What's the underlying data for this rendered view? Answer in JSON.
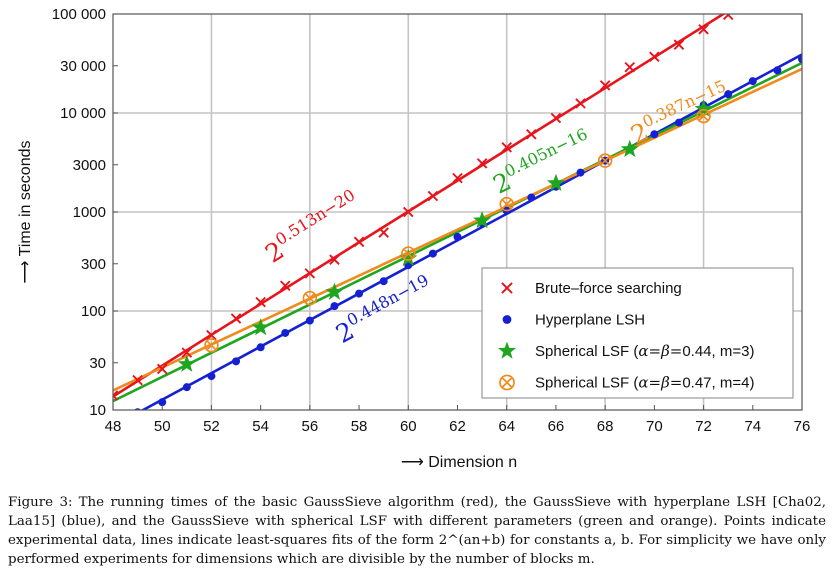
{
  "chart_data": {
    "type": "scatter",
    "y_scale": "log",
    "xlim": [
      48,
      76
    ],
    "ylim": [
      10,
      100000
    ],
    "grid": true,
    "legend_position": "lower-right",
    "xlabel": "⟶ Dimension n",
    "ylabel": "⟶ Time in seconds",
    "x_ticks": [
      "48",
      "50",
      "52",
      "54",
      "56",
      "58",
      "60",
      "62",
      "64",
      "66",
      "68",
      "70",
      "72",
      "74",
      "76"
    ],
    "y_ticks": [
      {
        "value": 10,
        "label": "10"
      },
      {
        "value": 30,
        "label": "30"
      },
      {
        "value": 100,
        "label": "100"
      },
      {
        "value": 300,
        "label": "300"
      },
      {
        "value": 1000,
        "label": "1000"
      },
      {
        "value": 3000,
        "label": "3000"
      },
      {
        "value": 10000,
        "label": "10 000"
      },
      {
        "value": 30000,
        "label": "30 000"
      },
      {
        "value": 100000,
        "label": "100 000"
      }
    ],
    "series": [
      {
        "name": "Brute–force searching",
        "color": "#e8141c",
        "marker": "x",
        "fit": {
          "a": 0.513,
          "b": -20,
          "label_base": "2",
          "label_exp": "0.513n−20"
        },
        "x": [
          48,
          49,
          50,
          51,
          52,
          53,
          54,
          55,
          56,
          57,
          58,
          59,
          60,
          61,
          62,
          63,
          64,
          65,
          66,
          67,
          68,
          69,
          70,
          71,
          72,
          73
        ],
        "y": [
          14,
          20,
          26,
          38,
          57,
          84,
          123,
          180,
          240,
          330,
          500,
          620,
          1000,
          1450,
          2200,
          3100,
          4500,
          6100,
          8900,
          12500,
          19000,
          29000,
          37000,
          49000,
          70000,
          98000
        ]
      },
      {
        "name": "Hyperplane LSH",
        "color": "#1420d2",
        "marker": "dot",
        "fit": {
          "a": 0.448,
          "b": -19,
          "label_base": "2",
          "label_exp": "0.448n−19"
        },
        "x": [
          49,
          50,
          51,
          52,
          53,
          54,
          55,
          56,
          57,
          58,
          59,
          60,
          61,
          62,
          63,
          64,
          65,
          66,
          67,
          68,
          69,
          70,
          71,
          72,
          73,
          74,
          75,
          76
        ],
        "y": [
          9.5,
          12,
          17,
          22,
          31,
          43,
          60,
          80,
          112,
          150,
          200,
          290,
          380,
          560,
          770,
          1030,
          1400,
          1800,
          2500,
          3300,
          4300,
          6100,
          8000,
          12000,
          15500,
          21000,
          27000,
          35000
        ]
      },
      {
        "name": "Spherical LSF (α=β=0.44, m=3)",
        "legend_prefix": "Spherical LSF (",
        "legend_math": "α=β=",
        "legend_suffix": "0.44, m=3)",
        "color": "#1fa61f",
        "marker": "star",
        "x": [
          51,
          54,
          57,
          60,
          63,
          66,
          69,
          72
        ],
        "y": [
          29,
          68,
          155,
          340,
          820,
          1950,
          4300,
          11000
        ]
      },
      {
        "name": "Spherical LSF (α=β=0.47, m=4)",
        "legend_prefix": "Spherical LSF (",
        "legend_math": "α=β=",
        "legend_suffix": "0.47, m=4)",
        "color": "#f08a1c",
        "marker": "otimes",
        "fit": {
          "a": 0.387,
          "b": -15,
          "label_base": "2",
          "label_exp": "0.387n−15"
        },
        "x": [
          52,
          56,
          60,
          64,
          68,
          72
        ],
        "y": [
          45,
          135,
          380,
          1200,
          3300,
          9300
        ]
      }
    ]
  },
  "caption": {
    "label": "Figure 3:",
    "text": "The running times of the basic GaussSieve algorithm (red), the GaussSieve with hyperplane LSH [Cha02, Laa15] (blue), and the GaussSieve with spherical LSF with different parameters (green and orange). Points indicate experimental data, lines indicate least-squares fits of the form 2^(an+b) for constants a, b. For simplicity we have only performed experiments for dimensions which are divisible by the number of blocks m."
  }
}
